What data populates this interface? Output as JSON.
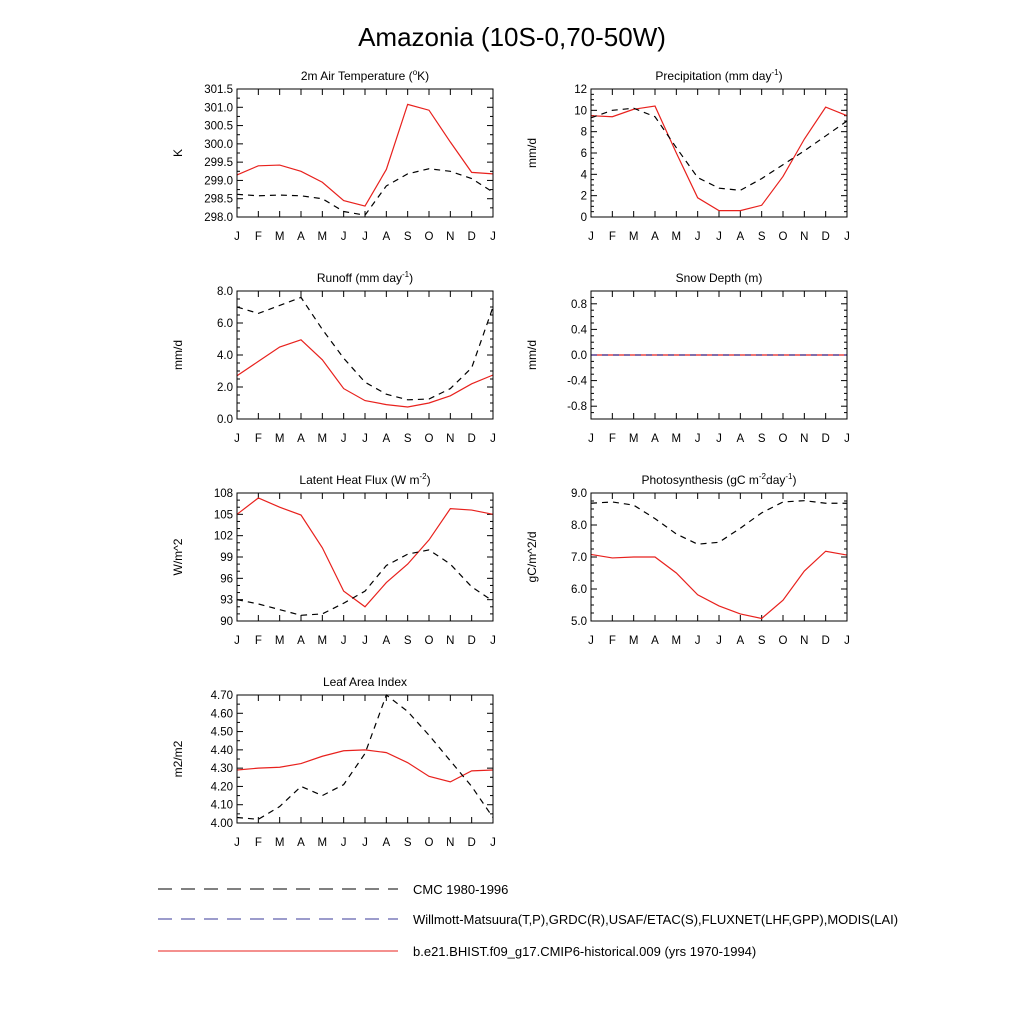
{
  "title": "Amazonia (10S-0,70-50W)",
  "months": [
    "J",
    "F",
    "M",
    "A",
    "M",
    "J",
    "J",
    "A",
    "S",
    "O",
    "N",
    "D",
    "J"
  ],
  "colors": {
    "model": "#e8211d",
    "obs": "#000000",
    "obs_alt": "#3a3a9a"
  },
  "legend": [
    {
      "label": "CMC 1980-1996",
      "style": "dashed",
      "color": "#000000"
    },
    {
      "label": "Willmott-Matsuura(T,P),GRDC(R),USAF/ETAC(S),FLUXNET(LHF,GPP),MODIS(LAI)",
      "style": "dashed",
      "color": "#3a3a9a"
    },
    {
      "label": "b.e21.BHIST.f09_g17.CMIP6-historical.009 (yrs 1970-1994)",
      "style": "solid",
      "color": "#e8211d"
    }
  ],
  "chart_data": [
    {
      "type": "line",
      "id": "temp",
      "title": "2m Air Temperature (",
      "title_sup": "o",
      "title_end": "K)",
      "ylabel": "K",
      "ylim": [
        298.0,
        301.5
      ],
      "yticks": [
        298.0,
        298.5,
        299.0,
        299.5,
        300.0,
        300.5,
        301.0,
        301.5
      ],
      "ytick_labels": [
        "298.0",
        "298.5",
        "299.0",
        "299.5",
        "300.0",
        "300.5",
        "301.0",
        "301.5"
      ],
      "yminor": 2,
      "series": [
        {
          "name": "model",
          "style": "solid",
          "values": [
            299.15,
            299.4,
            299.42,
            299.25,
            298.95,
            298.45,
            298.3,
            299.3,
            301.08,
            300.92,
            300.05,
            299.22,
            299.18
          ]
        },
        {
          "name": "obs",
          "style": "dashed",
          "values": [
            298.62,
            298.58,
            298.6,
            298.58,
            298.5,
            298.15,
            298.05,
            298.85,
            299.18,
            299.32,
            299.25,
            299.05,
            298.68
          ]
        }
      ]
    },
    {
      "type": "line",
      "id": "precip",
      "title": "Precipitation (mm day",
      "title_sup": "-1",
      "title_end": ")",
      "ylabel": "mm/d",
      "ylim": [
        0,
        12
      ],
      "yticks": [
        0,
        2,
        4,
        6,
        8,
        10,
        12
      ],
      "ytick_labels": [
        "0",
        "2",
        "4",
        "6",
        "8",
        "10",
        "12"
      ],
      "yminor": 4,
      "series": [
        {
          "name": "model",
          "style": "solid",
          "values": [
            9.5,
            9.4,
            10.1,
            10.4,
            6.0,
            1.8,
            0.6,
            0.6,
            1.1,
            3.8,
            7.3,
            10.3,
            9.5
          ]
        },
        {
          "name": "obs",
          "style": "dashed",
          "values": [
            9.3,
            10.0,
            10.2,
            9.4,
            6.5,
            3.7,
            2.7,
            2.5,
            3.6,
            4.9,
            6.2,
            7.6,
            9.0
          ]
        }
      ]
    },
    {
      "type": "line",
      "id": "runoff",
      "title": "Runoff (mm day",
      "title_sup": "-1",
      "title_end": ")",
      "ylabel": "mm/d",
      "ylim": [
        0,
        8
      ],
      "yticks": [
        0,
        2,
        4,
        6,
        8
      ],
      "ytick_labels": [
        "0.0",
        "2.0",
        "4.0",
        "6.0",
        "8.0"
      ],
      "yminor": 4,
      "series": [
        {
          "name": "model",
          "style": "solid",
          "values": [
            2.7,
            3.6,
            4.5,
            4.95,
            3.7,
            1.9,
            1.15,
            0.9,
            0.75,
            1.0,
            1.45,
            2.2,
            2.75
          ]
        },
        {
          "name": "obs",
          "style": "dashed",
          "values": [
            7.0,
            6.6,
            7.1,
            7.6,
            5.6,
            3.8,
            2.3,
            1.55,
            1.2,
            1.25,
            1.9,
            3.2,
            7.0
          ]
        }
      ]
    },
    {
      "type": "line",
      "id": "snow",
      "title": "Snow Depth (m)",
      "title_sup": "",
      "title_end": "",
      "ylabel": "mm/d",
      "ylim": [
        -1.0,
        1.0
      ],
      "yticks": [
        -0.8,
        -0.4,
        0.0,
        0.4,
        0.8
      ],
      "ytick_labels": [
        "-0.8",
        "-0.4",
        "0.0",
        "0.4",
        "0.8"
      ],
      "yminor": 4,
      "series": [
        {
          "name": "model",
          "style": "solid",
          "values": [
            0,
            0,
            0,
            0,
            0,
            0,
            0,
            0,
            0,
            0,
            0,
            0,
            0
          ]
        },
        {
          "name": "obs_alt",
          "style": "dashed",
          "values": [
            0,
            0,
            0,
            0,
            0,
            0,
            0,
            0,
            0,
            0,
            0,
            0,
            0
          ]
        }
      ]
    },
    {
      "type": "line",
      "id": "lhf",
      "title": "Latent Heat Flux (W m",
      "title_sup": "-2",
      "title_end": ")",
      "ylabel": "W/m^2",
      "ylim": [
        90,
        108
      ],
      "yticks": [
        90,
        93,
        96,
        99,
        102,
        105,
        108
      ],
      "ytick_labels": [
        "90",
        "93",
        "96",
        "99",
        "102",
        "105",
        "108"
      ],
      "yminor": 3,
      "series": [
        {
          "name": "model",
          "style": "solid",
          "values": [
            105.0,
            107.3,
            106.0,
            104.9,
            100.3,
            94.2,
            92.0,
            95.4,
            98.0,
            101.4,
            105.8,
            105.6,
            105.0
          ]
        },
        {
          "name": "obs",
          "style": "dashed",
          "values": [
            93.0,
            92.4,
            91.6,
            90.8,
            91.0,
            92.5,
            94.2,
            97.8,
            99.4,
            100.0,
            98.0,
            94.8,
            92.8
          ]
        }
      ]
    },
    {
      "type": "line",
      "id": "gpp",
      "title": "Photosynthesis (gC m",
      "title_sup": "-2",
      "title_mid": "day",
      "title_sup2": "-1",
      "title_end": ")",
      "ylabel": "gC/m^2/d",
      "ylim": [
        5.0,
        9.0
      ],
      "yticks": [
        5.0,
        6.0,
        7.0,
        8.0,
        9.0
      ],
      "ytick_labels": [
        "5.0",
        "6.0",
        "7.0",
        "8.0",
        "9.0"
      ],
      "yminor": 4,
      "series": [
        {
          "name": "model",
          "style": "solid",
          "values": [
            7.08,
            6.97,
            7.0,
            7.0,
            6.5,
            5.82,
            5.47,
            5.22,
            5.08,
            5.65,
            6.56,
            7.18,
            7.06
          ]
        },
        {
          "name": "obs",
          "style": "dashed",
          "values": [
            8.68,
            8.72,
            8.62,
            8.2,
            7.72,
            7.4,
            7.46,
            7.9,
            8.38,
            8.72,
            8.76,
            8.68,
            8.68
          ]
        }
      ]
    },
    {
      "type": "line",
      "id": "lai",
      "title": "Leaf Area Index",
      "title_sup": "",
      "title_end": "",
      "ylabel": "m2/m2",
      "ylim": [
        4.0,
        4.7
      ],
      "yticks": [
        4.0,
        4.1,
        4.2,
        4.3,
        4.4,
        4.5,
        4.6,
        4.7
      ],
      "ytick_labels": [
        "4.00",
        "4.10",
        "4.20",
        "4.30",
        "4.40",
        "4.50",
        "4.60",
        "4.70"
      ],
      "yminor": 2,
      "series": [
        {
          "name": "model",
          "style": "solid",
          "values": [
            4.29,
            4.3,
            4.305,
            4.325,
            4.365,
            4.395,
            4.4,
            4.385,
            4.33,
            4.255,
            4.225,
            4.285,
            4.29
          ]
        },
        {
          "name": "obs",
          "style": "dashed",
          "values": [
            4.03,
            4.02,
            4.09,
            4.2,
            4.15,
            4.21,
            4.38,
            4.7,
            4.61,
            4.48,
            4.34,
            4.2,
            4.03
          ]
        }
      ]
    }
  ]
}
